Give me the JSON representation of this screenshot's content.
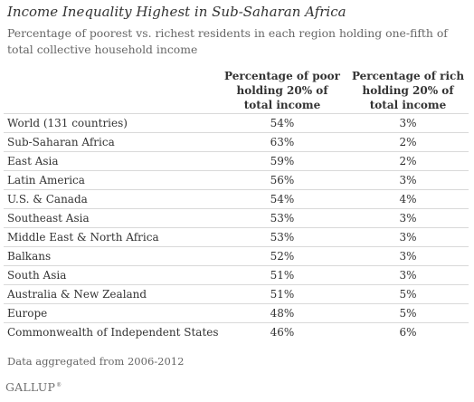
{
  "chart_data": {
    "type": "table",
    "title": "Income Inequality Highest in Sub-Saharan Africa",
    "subtitle": "Percentage of poorest vs. richest residents in each region holding one-fifth of total collective household income",
    "columns": [
      "",
      "Percentage of poor\nholding 20% of\ntotal income",
      "Percentage of rich\nholding 20% of\ntotal income"
    ],
    "rows": [
      {
        "region": "World (131 countries)",
        "poor": "54%",
        "rich": "3%"
      },
      {
        "region": "Sub-Saharan Africa",
        "poor": "63%",
        "rich": "2%"
      },
      {
        "region": "East Asia",
        "poor": "59%",
        "rich": "2%"
      },
      {
        "region": "Latin America",
        "poor": "56%",
        "rich": "3%"
      },
      {
        "region": "U.S. & Canada",
        "poor": "54%",
        "rich": "4%"
      },
      {
        "region": "Southeast Asia",
        "poor": "53%",
        "rich": "3%"
      },
      {
        "region": "Middle East & North Africa",
        "poor": "53%",
        "rich": "3%"
      },
      {
        "region": "Balkans",
        "poor": "52%",
        "rich": "3%"
      },
      {
        "region": "South Asia",
        "poor": "51%",
        "rich": "3%"
      },
      {
        "region": "Australia & New Zealand",
        "poor": "51%",
        "rich": "5%"
      },
      {
        "region": "Europe",
        "poor": "48%",
        "rich": "5%"
      },
      {
        "region": "Commonwealth of Independent States",
        "poor": "46%",
        "rich": "6%"
      }
    ],
    "footnote": "Data aggregated from 2006-2012",
    "source_logo": "GALLUP"
  }
}
